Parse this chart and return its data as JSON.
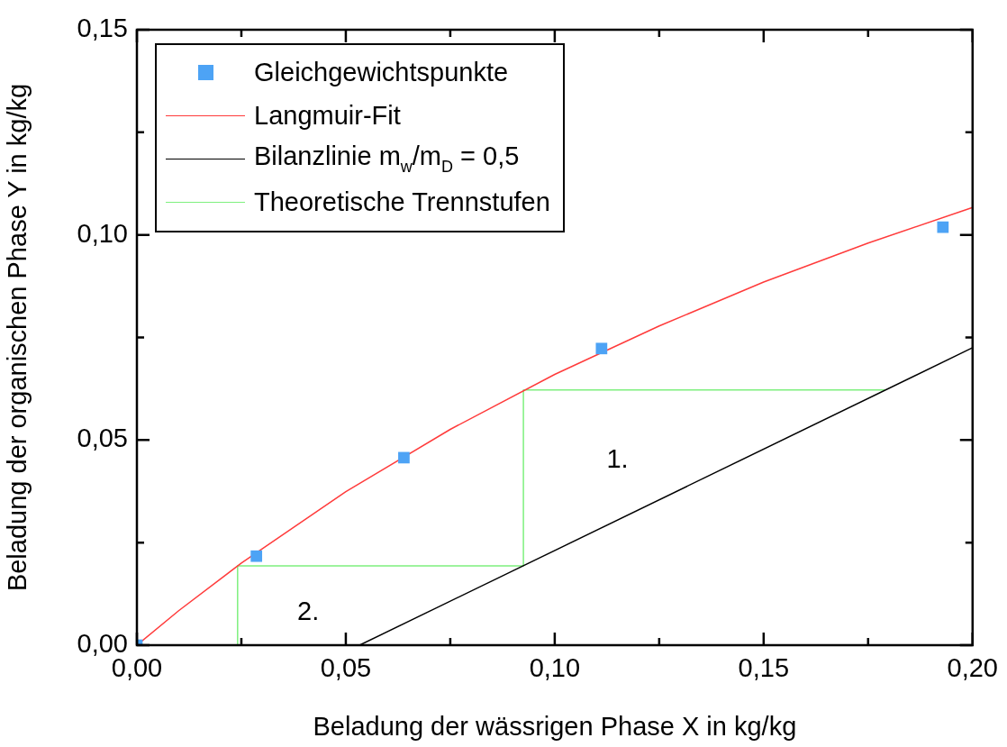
{
  "chart_data": {
    "type": "scatter",
    "xlabel": "Beladung der wässrigen Phase X in kg/kg",
    "ylabel": "Beladung der organischen Phase Y in kg/kg",
    "xlim": [
      0,
      0.2
    ],
    "ylim": [
      0,
      0.15
    ],
    "xticks": [
      {
        "value": 0,
        "label": "0,00"
      },
      {
        "value": 0.025,
        "label": null
      },
      {
        "value": 0.05,
        "label": "0,05"
      },
      {
        "value": 0.075,
        "label": null
      },
      {
        "value": 0.1,
        "label": "0,10"
      },
      {
        "value": 0.125,
        "label": null
      },
      {
        "value": 0.15,
        "label": "0,15"
      },
      {
        "value": 0.175,
        "label": null
      },
      {
        "value": 0.2,
        "label": "0,20"
      }
    ],
    "yticks": [
      {
        "value": 0,
        "label": "0,00"
      },
      {
        "value": 0.025,
        "label": null
      },
      {
        "value": 0.05,
        "label": "0,05"
      },
      {
        "value": 0.075,
        "label": null
      },
      {
        "value": 0.1,
        "label": "0,10"
      },
      {
        "value": 0.125,
        "label": null
      },
      {
        "value": 0.15,
        "label": "0,15"
      }
    ],
    "grid": false,
    "legend": "top left",
    "series": [
      {
        "name": "Gleichgewichtspunkte",
        "marker": "square",
        "color": "#4da3f5",
        "x": [
          0,
          0.0286,
          0.0639,
          0.1112,
          0.1929
        ],
        "values": [
          0,
          0.0217,
          0.0457,
          0.0723,
          0.1019
        ]
      },
      {
        "name": "Langmuir-Fit",
        "type": "line",
        "marker": "none",
        "color": "#ff3b3b",
        "x": [
          0,
          0.01,
          0.025,
          0.05,
          0.075,
          0.1,
          0.125,
          0.15,
          0.175,
          0.2
        ],
        "values": [
          0,
          0.0084,
          0.02,
          0.0374,
          0.0526,
          0.066,
          0.0778,
          0.0885,
          0.098,
          0.1067
        ]
      },
      {
        "name": "Bilanzlinie m$_{w}$/m$_{D}$ = 0,5",
        "type": "line",
        "marker": "none",
        "color": "#000000",
        "x": [
          0.0533,
          0.2
        ],
        "values": [
          0,
          0.0725
        ]
      },
      {
        "name": "Theoretische Trennstufen",
        "type": "line",
        "marker": "none",
        "color": "#7ef07e",
        "x": [
          0.179,
          0.0925,
          0.0925,
          0.0241,
          0.0241
        ],
        "values": [
          0.0622,
          0.0622,
          0.0193,
          0.0193,
          0
        ]
      }
    ],
    "annotations": [
      "1.",
      "2."
    ]
  }
}
